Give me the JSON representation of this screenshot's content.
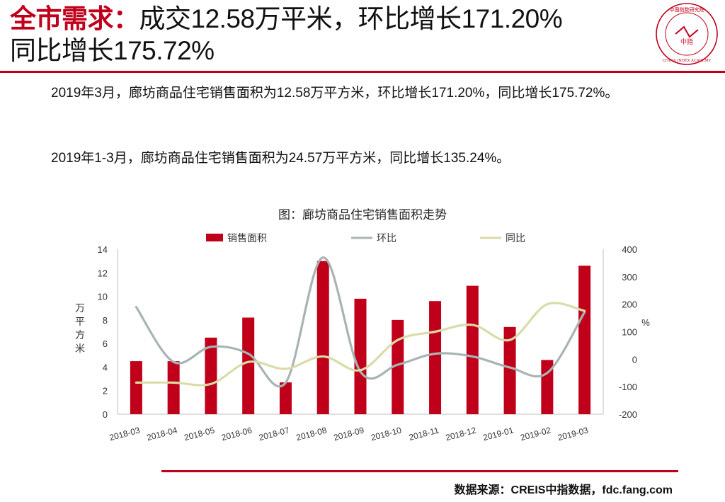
{
  "header": {
    "keyword": "全市需求",
    "colon": "：",
    "line1_rest": "成交12.58万平米，环比增长171.20%",
    "line2": "同比增长175.72%"
  },
  "logo": {
    "icon": "china-index-academy-seal-icon",
    "seal_text": "中国指数研究院",
    "center_text": "中指",
    "en_text": "CHINA INDEX ACADEMY"
  },
  "paragraphs": {
    "p1": "2019年3月，廊坊商品住宅销售面积为12.58万平方米，环比增长171.20%，同比增长175.72%。",
    "p2": "2019年1-3月，廊坊商品住宅销售面积为24.57万平方米，同比增长135.24%。"
  },
  "source": "数据来源：CREIS中指数据，fdc.fang.com",
  "colors": {
    "accent": "#c0001a",
    "bar": "#c0001a",
    "mom_line": "#a8b4b4",
    "yoy_line": "#d9dca8"
  },
  "chart_data": {
    "type": "bar",
    "title": "图：廊坊商品住宅销售面积走势",
    "categories": [
      "2018-03",
      "2018-04",
      "2018-05",
      "2018-06",
      "2018-07",
      "2018-08",
      "2018-09",
      "2018-10",
      "2018-11",
      "2018-12",
      "2019-01",
      "2019-02",
      "2019-03"
    ],
    "ylabel": "万平方米",
    "y2label": "%",
    "ylim": [
      0,
      14
    ],
    "yticks": [
      0,
      2,
      4,
      6,
      8,
      10,
      12,
      14
    ],
    "y2lim": [
      -200,
      400
    ],
    "y2ticks": [
      -200,
      -100,
      0,
      100,
      200,
      300,
      400
    ],
    "legend_position": "top",
    "grid": false,
    "series": [
      {
        "name": "销售面积",
        "type": "bar",
        "axis": "left",
        "values": [
          4.5,
          4.5,
          6.5,
          8.2,
          2.7,
          13.0,
          9.8,
          8.0,
          9.6,
          10.9,
          7.4,
          4.6,
          12.6
        ]
      },
      {
        "name": "环比",
        "type": "line",
        "axis": "right",
        "values": [
          190,
          -10,
          45,
          20,
          -85,
          370,
          -45,
          -20,
          20,
          10,
          -30,
          -50,
          171.2
        ]
      },
      {
        "name": "同比",
        "type": "line",
        "axis": "right",
        "values": [
          -85,
          -85,
          -90,
          -10,
          -35,
          10,
          -40,
          70,
          100,
          125,
          70,
          200,
          175.72
        ]
      }
    ]
  }
}
